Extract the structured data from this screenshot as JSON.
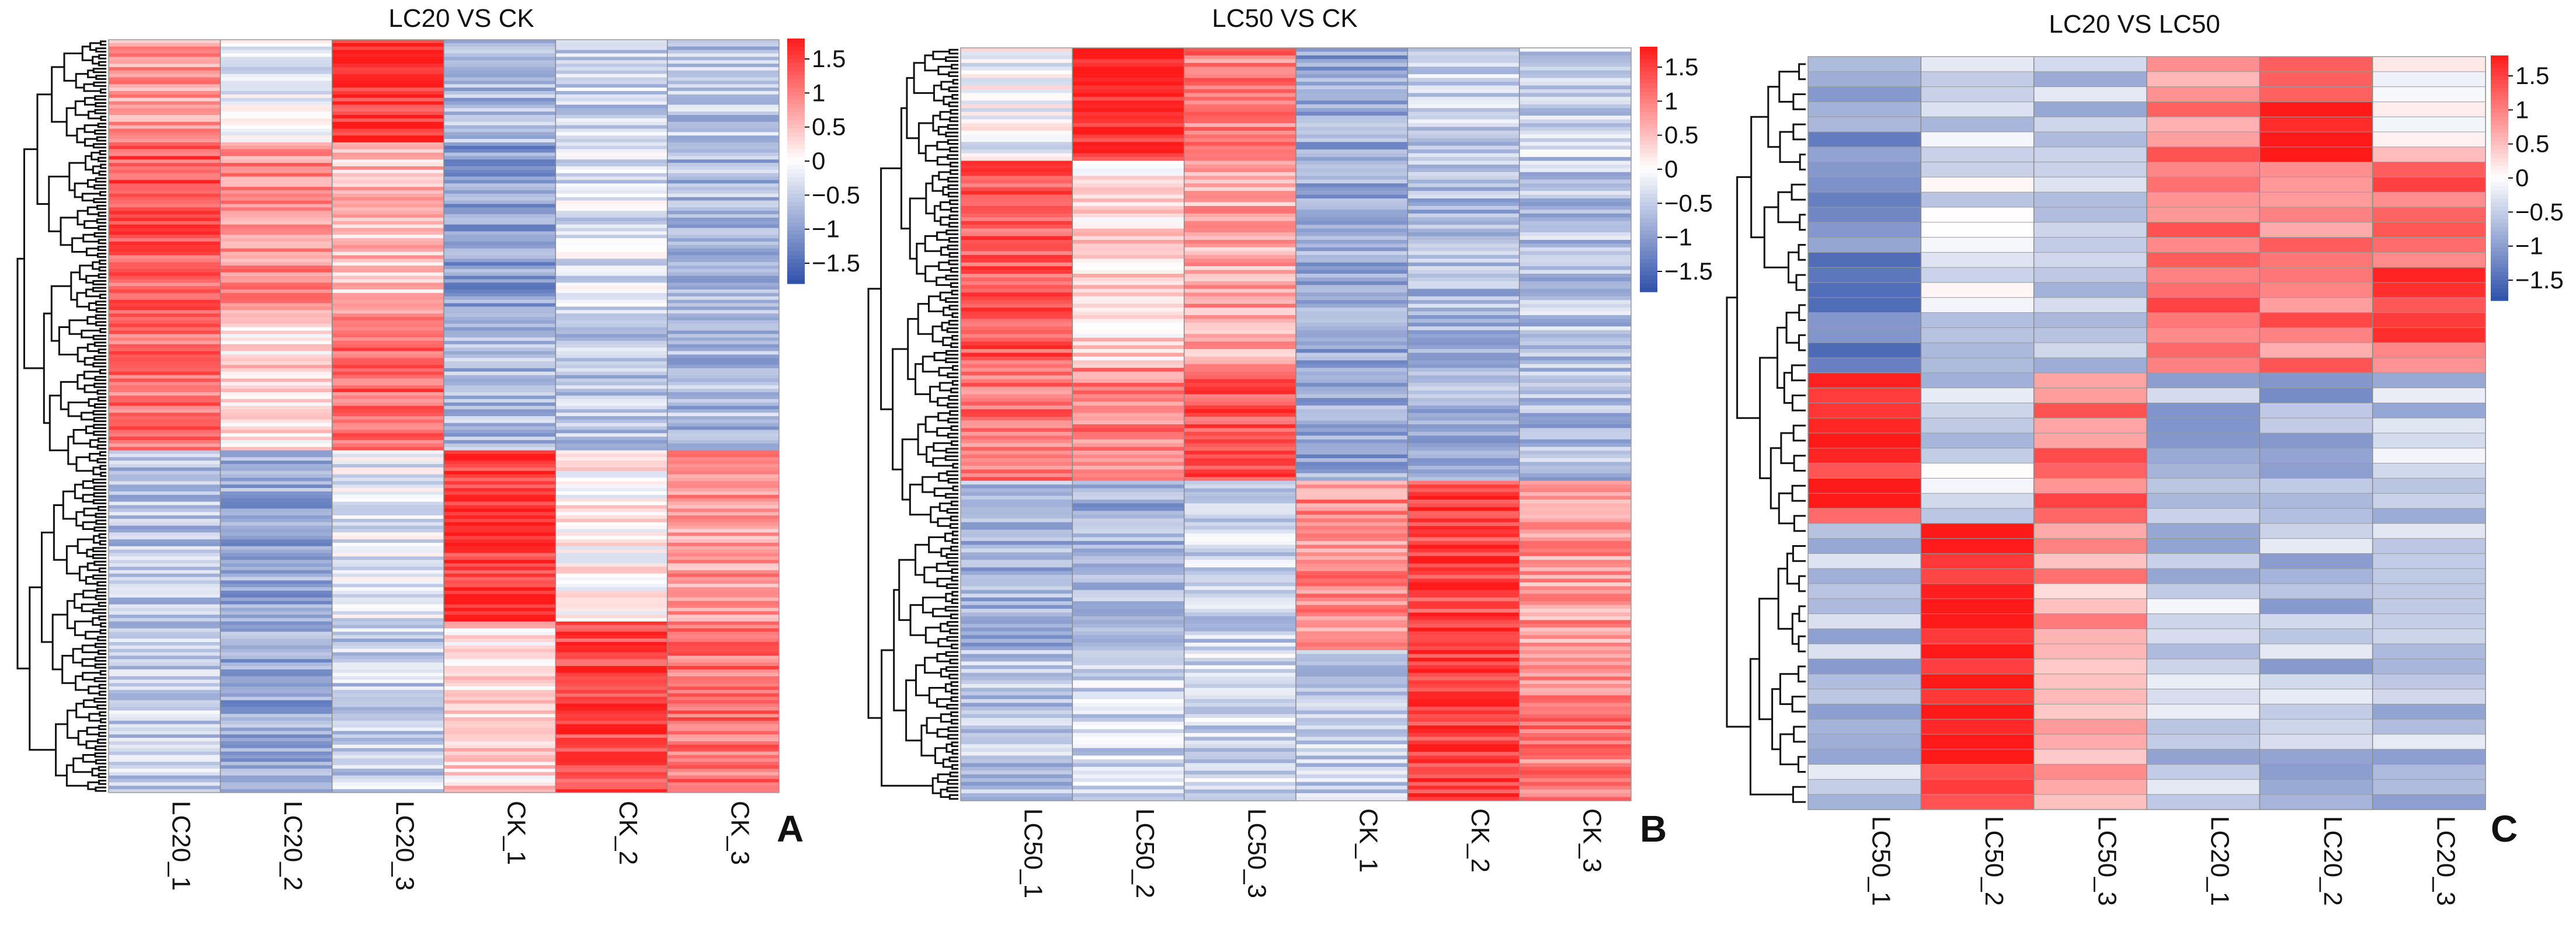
{
  "chart_data": [
    {
      "type": "heatmap",
      "panel_label": "A",
      "title": "LC20 VS CK",
      "columns": [
        "LC20_1",
        "LC20_2",
        "LC20_3",
        "CK_1",
        "CK_2",
        "CK_3"
      ],
      "row_count": 220,
      "colorbar": {
        "min": -1.8,
        "max": 1.8,
        "ticks": [
          "1.5",
          "1",
          "0.5",
          "0",
          "−0.5",
          "−1",
          "−1.5"
        ]
      },
      "row_blocks": [
        {
          "rows": 30,
          "means": [
            0.8,
            -0.2,
            1.6,
            -0.7,
            -0.5,
            -0.6
          ]
        },
        {
          "rows": 50,
          "means": [
            1.3,
            0.9,
            0.5,
            -1.0,
            -0.3,
            -0.7
          ]
        },
        {
          "rows": 40,
          "means": [
            1.1,
            0.3,
            1.2,
            -0.7,
            -0.6,
            -0.7
          ]
        },
        {
          "rows": 50,
          "means": [
            -0.6,
            -0.9,
            -0.2,
            1.6,
            0.1,
            0.8
          ]
        },
        {
          "rows": 50,
          "means": [
            -0.5,
            -0.9,
            -0.5,
            0.3,
            1.5,
            1.1
          ]
        }
      ]
    },
    {
      "type": "heatmap",
      "panel_label": "B",
      "title": "LC50 VS CK",
      "columns": [
        "LC50_1",
        "LC50_2",
        "LC50_3",
        "CK_1",
        "CK_2",
        "CK_3"
      ],
      "row_count": 200,
      "colorbar": {
        "min": -1.8,
        "max": 1.8,
        "ticks": [
          "1.5",
          "1",
          "0.5",
          "0",
          "−0.5",
          "−1",
          "−1.5"
        ]
      },
      "row_blocks": [
        {
          "rows": 30,
          "means": [
            -0.1,
            1.7,
            1.0,
            -0.9,
            -0.5,
            -0.5
          ]
        },
        {
          "rows": 55,
          "means": [
            1.3,
            0.3,
            0.7,
            -0.9,
            -0.7,
            -0.6
          ]
        },
        {
          "rows": 30,
          "means": [
            1.1,
            1.0,
            1.3,
            -0.9,
            -0.8,
            -0.7
          ]
        },
        {
          "rows": 45,
          "means": [
            -0.8,
            -0.8,
            -0.5,
            0.9,
            1.5,
            0.8
          ]
        },
        {
          "rows": 40,
          "means": [
            -0.6,
            -0.4,
            -0.4,
            -0.5,
            1.6,
            1.0
          ]
        }
      ]
    },
    {
      "type": "heatmap",
      "panel_label": "C",
      "title": "LC20 VS LC50",
      "columns": [
        "LC50_1",
        "LC50_2",
        "LC50_3",
        "LC20_1",
        "LC20_2",
        "LC20_3"
      ],
      "row_count": 50,
      "colorbar": {
        "min": -1.8,
        "max": 1.8,
        "ticks": [
          "1.5",
          "1",
          "0.5",
          "0",
          "−0.5",
          "−1",
          "−1.5"
        ]
      },
      "row_blocks": [
        {
          "rows": 7,
          "means": [
            -0.9,
            -0.4,
            -0.6,
            1.0,
            1.6,
            0.2
          ]
        },
        {
          "rows": 14,
          "means": [
            -1.3,
            -0.3,
            -0.6,
            1.2,
            1.0,
            1.3
          ]
        },
        {
          "rows": 10,
          "means": [
            1.6,
            -0.4,
            1.1,
            -0.7,
            -0.9,
            -0.5
          ]
        },
        {
          "rows": 19,
          "means": [
            -0.6,
            1.8,
            0.7,
            -0.5,
            -0.6,
            -0.6
          ]
        }
      ]
    }
  ]
}
